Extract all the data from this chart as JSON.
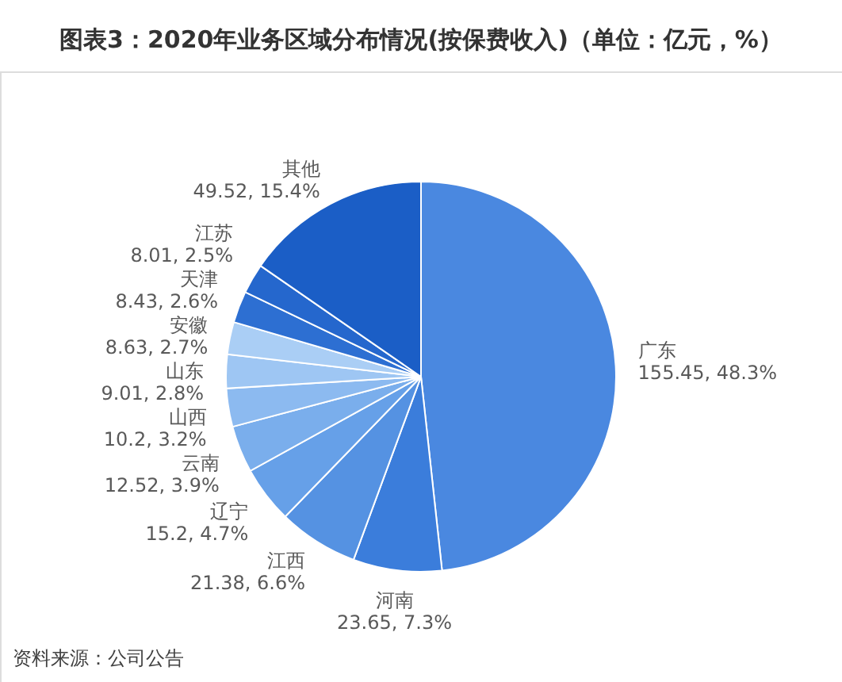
{
  "chart_data": {
    "type": "pie",
    "title": "图表3：2020年业务区域分布情况(按保费收入)（单位：亿元，%）",
    "categories": [
      "广东",
      "河南",
      "江西",
      "辽宁",
      "云南",
      "山西",
      "山东",
      "安徽",
      "天津",
      "江苏",
      "其他"
    ],
    "values": [
      155.45,
      23.65,
      21.38,
      15.2,
      12.52,
      10.2,
      9.01,
      8.63,
      8.43,
      8.01,
      49.52
    ],
    "colors": [
      "#4a88e0",
      "#3b7ddb",
      "#5592e2",
      "#66a0e8",
      "#7aaeec",
      "#8cbaf0",
      "#9ec6f3",
      "#aacef5",
      "#2d6fd2",
      "#2567cd",
      "#1b5ec6"
    ],
    "value_labels": [
      "155.45, 48.3%",
      "23.65, 7.3%",
      "21.38, 6.6%",
      "15.2, 4.7%",
      "12.52, 3.9%",
      "10.2, 3.2%",
      "9.01, 2.8%",
      "8.63, 2.7%",
      "8.43, 2.6%",
      "8.01, 2.5%",
      "49.52, 15.4%"
    ],
    "annotations": [
      "资料来源：公司公告"
    ]
  }
}
